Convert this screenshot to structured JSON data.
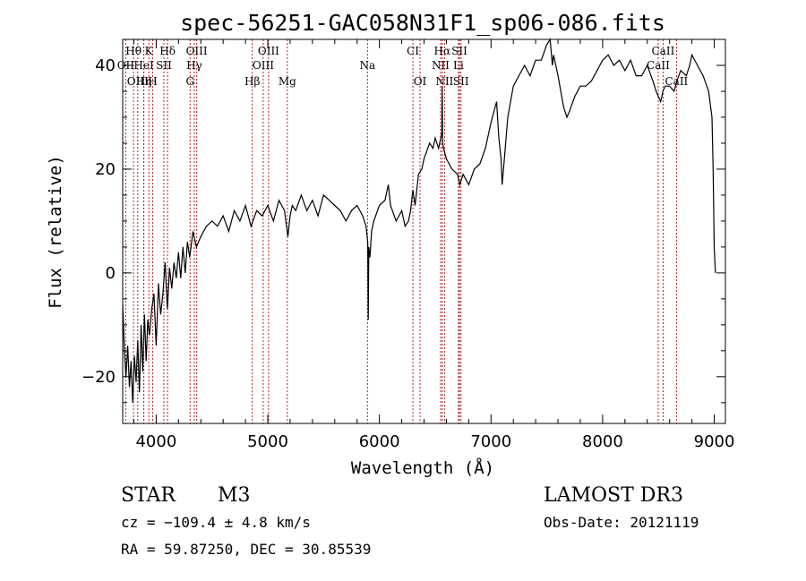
{
  "chart_data": {
    "type": "line",
    "title": "spec-56251-GAC058N31F1_sp06-086.fits",
    "xlabel": "Wavelength (Å)",
    "ylabel": "Flux (relative)",
    "xlim": [
      3700,
      9100
    ],
    "ylim": [
      -29,
      45
    ],
    "xticks": [
      4000,
      5000,
      6000,
      7000,
      8000,
      9000
    ],
    "xtick_labels": [
      "4000",
      "5000",
      "6000",
      "7000",
      "8000",
      "9000"
    ],
    "yticks": [
      -20,
      0,
      20,
      40
    ],
    "ytick_labels": [
      "−20",
      "0",
      "20",
      "40"
    ],
    "grid": false,
    "line_color": "#000000",
    "marker_color": "#b22222",
    "series": [
      {
        "name": "flux",
        "x": [
          3700,
          3715,
          3730,
          3745,
          3760,
          3775,
          3790,
          3805,
          3820,
          3835,
          3850,
          3865,
          3880,
          3895,
          3910,
          3925,
          3940,
          3960,
          3980,
          4000,
          4020,
          4040,
          4060,
          4080,
          4100,
          4120,
          4140,
          4160,
          4180,
          4200,
          4220,
          4240,
          4260,
          4280,
          4300,
          4330,
          4360,
          4400,
          4450,
          4500,
          4550,
          4600,
          4650,
          4700,
          4750,
          4800,
          4850,
          4900,
          4950,
          5000,
          5050,
          5100,
          5150,
          5180,
          5200,
          5220,
          5250,
          5300,
          5350,
          5400,
          5450,
          5500,
          5550,
          5600,
          5650,
          5700,
          5750,
          5800,
          5850,
          5880,
          5895,
          5900,
          5905,
          5915,
          5930,
          5950,
          6000,
          6050,
          6080,
          6100,
          6150,
          6200,
          6230,
          6260,
          6280,
          6300,
          6320,
          6350,
          6380,
          6400,
          6450,
          6480,
          6500,
          6530,
          6550,
          6560,
          6563,
          6566,
          6575,
          6600,
          6650,
          6700,
          6720,
          6750,
          6800,
          6850,
          6900,
          6950,
          7000,
          7050,
          7070,
          7090,
          7100,
          7120,
          7150,
          7200,
          7250,
          7300,
          7350,
          7400,
          7450,
          7500,
          7530,
          7550,
          7560,
          7600,
          7650,
          7680,
          7700,
          7750,
          7800,
          7850,
          7900,
          7950,
          8000,
          8050,
          8100,
          8150,
          8200,
          8250,
          8300,
          8350,
          8400,
          8450,
          8480,
          8500,
          8520,
          8540,
          8560,
          8600,
          8640,
          8665,
          8700,
          8750,
          8780,
          8800,
          8850,
          8900,
          8950,
          8980,
          8990,
          9000,
          9010
        ],
        "y": [
          -6,
          -15,
          -20,
          -14,
          -22,
          -17,
          -25,
          -16,
          -21,
          -13,
          -23,
          -10,
          -19,
          -8,
          -17,
          -9,
          -12,
          -7,
          -4,
          -14,
          -2,
          -8,
          -4,
          2,
          -7,
          1,
          -3,
          2,
          -1,
          4,
          -1,
          5,
          0,
          6,
          3,
          8,
          5,
          7,
          9,
          10,
          9,
          11,
          8,
          12,
          10,
          13,
          9,
          12,
          11,
          13,
          10,
          14,
          12,
          7,
          11,
          13,
          12,
          15,
          12,
          14,
          11,
          15,
          14,
          13,
          12,
          10,
          12,
          13,
          11,
          9,
          6,
          -9,
          5,
          3,
          8,
          10,
          13,
          14,
          17,
          13,
          10,
          12,
          9,
          10,
          12,
          16,
          13,
          19,
          20,
          22,
          25,
          24,
          26,
          24,
          26,
          27,
          36,
          25,
          24,
          22,
          20,
          19,
          17,
          19,
          17,
          20,
          21,
          24,
          29,
          33,
          26,
          22,
          17,
          22,
          30,
          36,
          38,
          40,
          38,
          41,
          41,
          44,
          45,
          40,
          42,
          38,
          32,
          30,
          31,
          34,
          36,
          36,
          37,
          39,
          41,
          42,
          40,
          41,
          39,
          41,
          38,
          38,
          40,
          37,
          35,
          34,
          33,
          35,
          36,
          36,
          35,
          37,
          39,
          38,
          40,
          42,
          40,
          38,
          35,
          30,
          20,
          5,
          0
        ]
      }
    ],
    "spectral_lines": [
      {
        "label": "Hθ",
        "wavelength": 3797,
        "row": 0
      },
      {
        "label": "OII",
        "wavelength": 3727,
        "row": 1
      },
      {
        "label": "K",
        "wavelength": 3934,
        "row": 0
      },
      {
        "label": "HeI",
        "wavelength": 3889,
        "row": 1
      },
      {
        "label": "Hδ",
        "wavelength": 4102,
        "row": 0
      },
      {
        "label": "SII",
        "wavelength": 4069,
        "row": 1
      },
      {
        "label": "OIII",
        "wavelength": 3835,
        "row": 2
      },
      {
        "label": "Hη",
        "wavelength": 3889,
        "row": 2
      },
      {
        "label": "H",
        "wavelength": 3969,
        "row": 2
      },
      {
        "label": "OIII",
        "wavelength": 4363,
        "row": 0
      },
      {
        "label": "Hγ",
        "wavelength": 4341,
        "row": 1
      },
      {
        "label": "G",
        "wavelength": 4304,
        "row": 2
      },
      {
        "label": "OIII",
        "wavelength": 5007,
        "row": 0
      },
      {
        "label": "OIII",
        "wavelength": 4959,
        "row": 1
      },
      {
        "label": "Hβ",
        "wavelength": 4861,
        "row": 2
      },
      {
        "label": "Mg",
        "wavelength": 5175,
        "row": 2
      },
      {
        "label": "Na",
        "wavelength": 5893,
        "row": 1
      },
      {
        "label": "CI",
        "wavelength": 6300,
        "row": 0
      },
      {
        "label": "OI",
        "wavelength": 6364,
        "row": 2
      },
      {
        "label": "Hα",
        "wavelength": 6563,
        "row": 0
      },
      {
        "label": "SII",
        "wavelength": 6717,
        "row": 0
      },
      {
        "label": "NII",
        "wavelength": 6548,
        "row": 1
      },
      {
        "label": "Li",
        "wavelength": 6708,
        "row": 1
      },
      {
        "label": "NII",
        "wavelength": 6584,
        "row": 2
      },
      {
        "label": "SII",
        "wavelength": 6731,
        "row": 2
      },
      {
        "label": "CaII",
        "wavelength": 8542,
        "row": 0
      },
      {
        "label": "CaII",
        "wavelength": 8498,
        "row": 1
      },
      {
        "label": "CaII",
        "wavelength": 8662,
        "row": 2
      }
    ]
  },
  "info": {
    "object_class": "STAR",
    "subclass": "M3",
    "survey": "LAMOST DR3",
    "cz": "cz = −109.4 ± 4.8 km/s",
    "obs_date": "Obs-Date: 20121119",
    "coords": "RA =  59.87250, DEC =  30.85539"
  }
}
